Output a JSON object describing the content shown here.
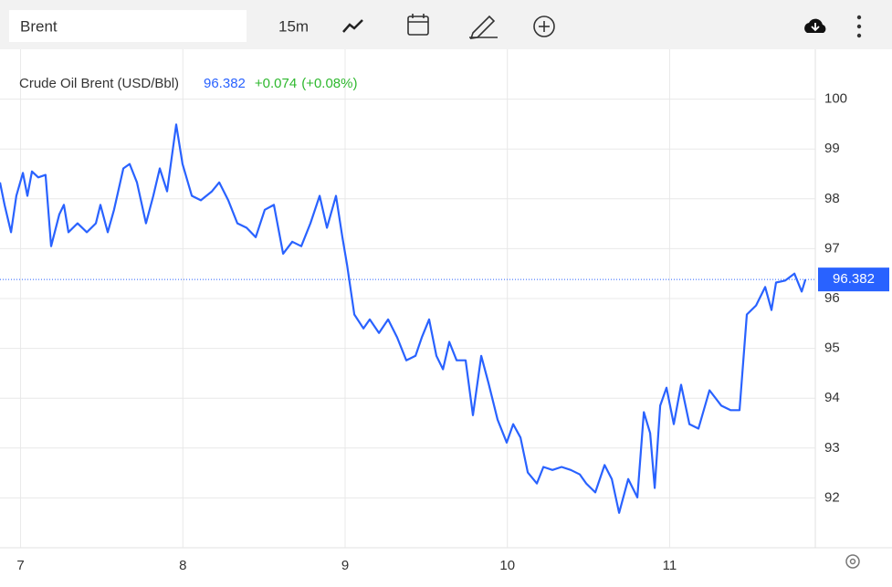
{
  "ui": {
    "symbol": "Brent",
    "interval": "15m"
  },
  "chart_data": {
    "type": "line",
    "x": [
      6.873,
      6.901,
      6.941,
      6.974,
      7.014,
      7.042,
      7.07,
      7.109,
      7.154,
      7.188,
      7.239,
      7.267,
      7.295,
      7.351,
      7.408,
      7.464,
      7.492,
      7.537,
      7.576,
      7.633,
      7.672,
      7.717,
      7.773,
      7.818,
      7.858,
      7.903,
      7.959,
      7.998,
      8.055,
      8.111,
      8.179,
      8.224,
      8.28,
      8.336,
      8.393,
      8.449,
      8.505,
      8.561,
      8.618,
      8.674,
      8.73,
      8.786,
      8.843,
      8.888,
      8.944,
      8.983,
      9.012,
      9.057,
      9.113,
      9.152,
      9.209,
      9.265,
      9.321,
      9.377,
      9.434,
      9.473,
      9.518,
      9.563,
      9.603,
      9.642,
      9.687,
      9.743,
      9.788,
      9.839,
      9.884,
      9.94,
      9.996,
      10.036,
      10.081,
      10.126,
      10.182,
      10.222,
      10.278,
      10.334,
      10.391,
      10.447,
      10.486,
      10.542,
      10.599,
      10.644,
      10.689,
      10.745,
      10.801,
      10.841,
      10.88,
      10.908,
      10.942,
      10.981,
      11.026,
      11.071,
      11.122,
      11.178,
      11.246,
      11.319,
      11.375,
      11.431,
      11.476,
      11.533,
      11.589,
      11.628,
      11.656,
      11.713,
      11.769,
      11.814,
      11.837
    ],
    "series": [
      {
        "name": "Crude Oil Brent (USD/Bbl)",
        "color": "#2962ff",
        "values": [
          98.33,
          97.88,
          97.33,
          98.06,
          98.52,
          98.06,
          98.55,
          98.43,
          98.48,
          97.05,
          97.69,
          97.88,
          97.33,
          97.51,
          97.33,
          97.51,
          97.88,
          97.33,
          97.78,
          98.61,
          98.7,
          98.33,
          97.51,
          98.06,
          98.61,
          98.15,
          99.49,
          98.7,
          98.06,
          97.97,
          98.15,
          98.33,
          97.97,
          97.51,
          97.42,
          97.23,
          97.78,
          97.88,
          96.9,
          97.14,
          97.05,
          97.51,
          98.06,
          97.42,
          98.06,
          97.23,
          96.68,
          95.68,
          95.4,
          95.58,
          95.31,
          95.58,
          95.22,
          94.76,
          94.85,
          95.22,
          95.58,
          94.85,
          94.58,
          95.13,
          94.76,
          94.76,
          93.66,
          94.85,
          94.3,
          93.57,
          93.11,
          93.48,
          93.21,
          92.51,
          92.29,
          92.62,
          92.56,
          92.62,
          92.56,
          92.47,
          92.29,
          92.11,
          92.66,
          92.38,
          91.7,
          92.38,
          92.01,
          93.72,
          93.3,
          92.2,
          93.85,
          94.21,
          93.48,
          94.27,
          93.48,
          93.39,
          94.16,
          93.85,
          93.76,
          93.76,
          95.68,
          95.86,
          96.23,
          95.77,
          96.32,
          96.36,
          96.5,
          96.14,
          96.382
        ]
      }
    ],
    "last_value": 96.382,
    "change": "+0.074",
    "change_pct": "(+0.08%)",
    "xlim": [
      6.873,
      11.898
    ],
    "xticks": [
      7,
      8,
      9,
      10,
      11
    ],
    "ylim": [
      91,
      101
    ],
    "yticks": [
      92,
      93,
      94,
      95,
      96,
      97,
      98,
      99,
      100
    ],
    "grid": true
  }
}
